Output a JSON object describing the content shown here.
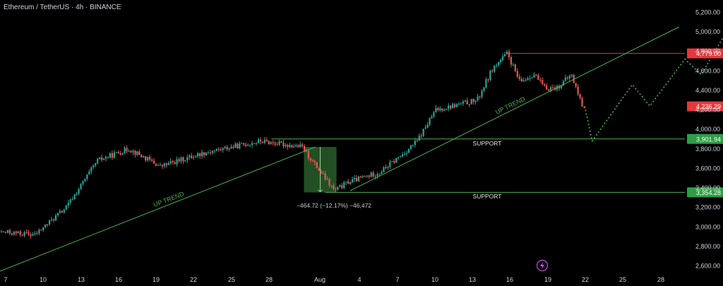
{
  "title": "Ethereum / TetherUS · 4h · BINANCE",
  "chart_data": {
    "type": "candlestick",
    "symbol": "Ethereum / TetherUS",
    "interval": "4h",
    "exchange": "BINANCE",
    "ylim": [
      2500,
      5300
    ],
    "y_ticks": [
      "5,200.00",
      "5,000.00",
      "4,800.00",
      "4,600.00",
      "4,400.00",
      "4,200.00",
      "4,000.00",
      "3,800.00",
      "3,600.00",
      "3,400.00",
      "3,200.00",
      "3,000.00",
      "2,800.00",
      "2,600.00"
    ],
    "y_tick_values": [
      5200,
      5000,
      4800,
      4600,
      4400,
      4200,
      4000,
      3800,
      3600,
      3400,
      3200,
      3000,
      2800,
      2600
    ],
    "x_ticks": [
      "7",
      "10",
      "13",
      "16",
      "19",
      "22",
      "25",
      "28",
      "Aug",
      "4",
      "7",
      "10",
      "13",
      "16",
      "19",
      "22",
      "25",
      "28"
    ],
    "price_labels": [
      {
        "text": "4,779.00",
        "value": 4779,
        "color": "#e5383b"
      },
      {
        "text": "4,236.29",
        "value": 4236.29,
        "color": "#e5383b"
      },
      {
        "text": "3,901.94",
        "value": 3901.94,
        "color": "#2e9e46"
      },
      {
        "text": "3,354.28",
        "value": 3354.28,
        "color": "#2e9e46"
      }
    ],
    "annotations": {
      "uptrend": "UP TREND",
      "support": "SUPPORT",
      "measure": "−464.72 (−12.17%) −46,472"
    },
    "path_anchors": [
      {
        "t": 3,
        "p": 2550
      },
      {
        "t": 6.5,
        "p": 2950
      },
      {
        "t": 9.5,
        "p": 2920
      },
      {
        "t": 12,
        "p": 3200
      },
      {
        "t": 14.5,
        "p": 3680
      },
      {
        "t": 17,
        "p": 3800
      },
      {
        "t": 19.5,
        "p": 3620
      },
      {
        "t": 23,
        "p": 3760
      },
      {
        "t": 27.5,
        "p": 3880
      },
      {
        "t": 30.8,
        "p": 3820
      },
      {
        "t": 33.4,
        "p": 3370
      },
      {
        "t": 34.5,
        "p": 3460
      },
      {
        "t": 37,
        "p": 3560
      },
      {
        "t": 38.8,
        "p": 3740
      },
      {
        "t": 40,
        "p": 3880
      },
      {
        "t": 41.5,
        "p": 4200
      },
      {
        "t": 44.8,
        "p": 4300
      },
      {
        "t": 46,
        "p": 4620
      },
      {
        "t": 47.2,
        "p": 4779
      },
      {
        "t": 48.2,
        "p": 4480
      },
      {
        "t": 49.3,
        "p": 4570
      },
      {
        "t": 50.2,
        "p": 4420
      },
      {
        "t": 51.2,
        "p": 4430
      },
      {
        "t": 52.3,
        "p": 4560
      },
      {
        "t": 53.2,
        "p": 4236
      }
    ],
    "projection": [
      {
        "t": 53.2,
        "p": 4236
      },
      {
        "t": 53.8,
        "p": 3880
      },
      {
        "t": 57.0,
        "p": 4460
      },
      {
        "t": 58.4,
        "p": 4240
      },
      {
        "t": 61.2,
        "p": 4720
      },
      {
        "t": 62.5,
        "p": 4560
      },
      {
        "t": 65.6,
        "p": 5240
      },
      {
        "t": 66.0,
        "p": 5180
      }
    ],
    "support_levels": [
      3901.94,
      3354.28
    ],
    "resistance_level": 4779,
    "colors": {
      "up": "#26a69a",
      "down": "#ef5350",
      "trend": "#4caf50",
      "resistance": "#e5383b",
      "support": "#4caf50"
    }
  },
  "branding": {
    "icon": "bolt-icon"
  }
}
